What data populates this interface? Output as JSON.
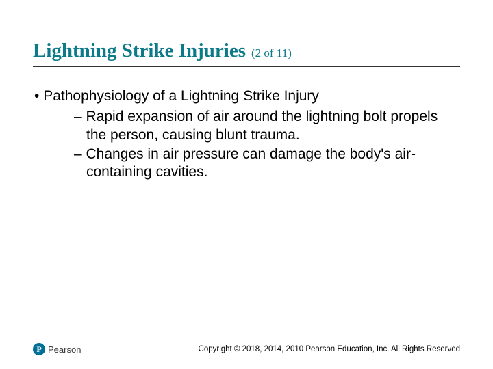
{
  "title": {
    "main": "Lightning Strike Injuries",
    "suffix": "(2 of 11)",
    "color": "#0d7a8a",
    "main_fontsize": 29,
    "suffix_fontsize": 17,
    "font_family": "Georgia, serif",
    "underline_color": "#333333"
  },
  "content": {
    "fontsize": 21,
    "color": "#000000",
    "bullets": [
      {
        "text": "Pathophysiology of a Lightning Strike Injury",
        "sub": [
          "Rapid expansion of air around the lightning bolt propels the person, causing blunt trauma.",
          "Changes in air pressure can damage the body's air-containing cavities."
        ]
      }
    ]
  },
  "footer": {
    "logo": {
      "mark_letter": "P",
      "mark_bg": "#006f98",
      "brand": "Pearson"
    },
    "copyright": "Copyright © 2018, 2014, 2010 Pearson Education, Inc. All Rights Reserved",
    "copyright_fontsize": 11.5
  },
  "background_color": "#ffffff",
  "slide_width": 720,
  "slide_height": 540
}
